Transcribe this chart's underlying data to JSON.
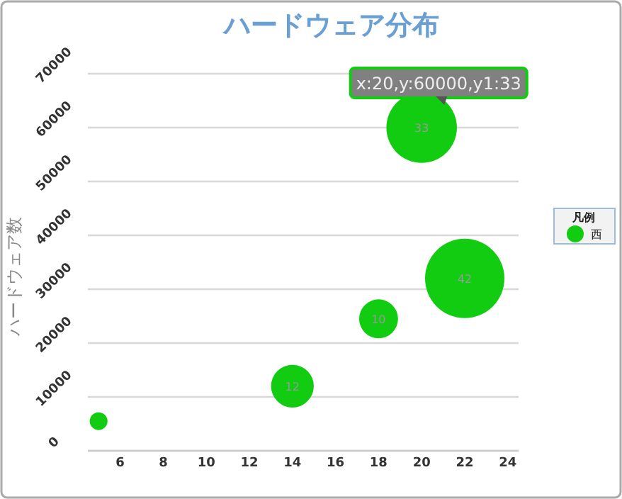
{
  "chart_data": {
    "type": "bubble",
    "title": "ハードウェア分布",
    "ylabel": "ハードウェア数",
    "legend_title": "凡例",
    "x": [
      5,
      14,
      18,
      20,
      22
    ],
    "series": [
      {
        "name": "西",
        "color": "#11cc11",
        "values": [
          5500,
          12000,
          24500,
          60000,
          32000
        ],
        "sizes": [
          0.05,
          0.29,
          0.24,
          0.79,
          1
        ]
      }
    ],
    "xlim": [
      4.5,
      24.5
    ],
    "xticks": [
      6,
      8,
      10,
      12,
      14,
      16,
      18,
      20,
      22,
      24
    ],
    "ylim": [
      0,
      70000
    ],
    "yticks": [
      0,
      10000,
      20000,
      30000,
      40000,
      50000,
      60000,
      70000
    ],
    "grid": "y",
    "legend": "right",
    "annotations": [
      {
        "text": "x:20,y:60000,y1:33",
        "x": 20,
        "y": 60000
      },
      {
        "text": "12",
        "x": 14,
        "y": 12000
      },
      {
        "text": "10",
        "x": 18,
        "y": 24500
      },
      {
        "text": "33",
        "x": 20,
        "y": 60000
      },
      {
        "text": "42",
        "x": 22,
        "y": 32000
      }
    ]
  }
}
